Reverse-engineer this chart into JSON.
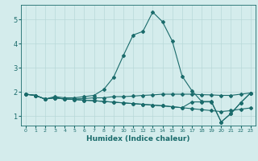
{
  "xlabel": "Humidex (Indice chaleur)",
  "bg_color": "#d4ecec",
  "line_color": "#1a6b6b",
  "grid_color": "#b8d8d8",
  "xlim": [
    -0.5,
    23.5
  ],
  "ylim": [
    0.6,
    5.6
  ],
  "xticks": [
    0,
    1,
    2,
    3,
    4,
    5,
    6,
    7,
    8,
    9,
    10,
    11,
    12,
    13,
    14,
    15,
    16,
    17,
    18,
    19,
    20,
    21,
    22,
    23
  ],
  "yticks": [
    1,
    2,
    3,
    4,
    5
  ],
  "curves": [
    {
      "x": [
        0,
        1,
        2,
        3,
        4,
        5,
        6,
        7,
        8,
        9,
        10,
        11,
        12,
        13,
        14,
        15,
        16,
        17,
        18,
        19,
        20,
        21,
        22,
        23
      ],
      "y": [
        1.9,
        1.85,
        1.7,
        1.8,
        1.75,
        1.75,
        1.8,
        1.85,
        2.1,
        2.6,
        3.5,
        4.35,
        4.5,
        5.3,
        4.9,
        4.1,
        2.65,
        2.05,
        1.6,
        1.6,
        0.75,
        1.1,
        1.55,
        1.95
      ]
    },
    {
      "x": [
        0,
        1,
        2,
        3,
        4,
        5,
        6,
        7,
        8,
        9,
        10,
        11,
        12,
        13,
        14,
        15,
        16,
        17,
        18,
        19,
        20,
        21,
        22,
        23
      ],
      "y": [
        1.9,
        1.85,
        1.7,
        1.75,
        1.7,
        1.7,
        1.72,
        1.75,
        1.75,
        1.8,
        1.8,
        1.82,
        1.85,
        1.87,
        1.9,
        1.9,
        1.9,
        1.9,
        1.88,
        1.87,
        1.85,
        1.85,
        1.9,
        1.95
      ]
    },
    {
      "x": [
        0,
        1,
        2,
        3,
        4,
        5,
        6,
        7,
        8,
        9,
        10,
        11,
        12,
        13,
        14,
        15,
        16,
        17,
        18,
        19,
        20,
        21,
        22,
        23
      ],
      "y": [
        1.9,
        1.85,
        1.7,
        1.75,
        1.7,
        1.68,
        1.65,
        1.63,
        1.6,
        1.57,
        1.54,
        1.51,
        1.48,
        1.45,
        1.42,
        1.38,
        1.34,
        1.3,
        1.26,
        1.22,
        1.18,
        1.22,
        1.28,
        1.33
      ]
    },
    {
      "x": [
        0,
        1,
        2,
        3,
        4,
        5,
        6,
        7,
        8,
        9,
        10,
        11,
        12,
        13,
        14,
        15,
        16,
        17,
        18,
        19,
        20,
        21,
        22,
        23
      ],
      "y": [
        1.9,
        1.85,
        1.7,
        1.75,
        1.7,
        1.68,
        1.65,
        1.63,
        1.6,
        1.57,
        1.54,
        1.51,
        1.48,
        1.45,
        1.42,
        1.38,
        1.34,
        1.58,
        1.58,
        1.58,
        0.75,
        1.1,
        1.55,
        1.95
      ]
    }
  ]
}
